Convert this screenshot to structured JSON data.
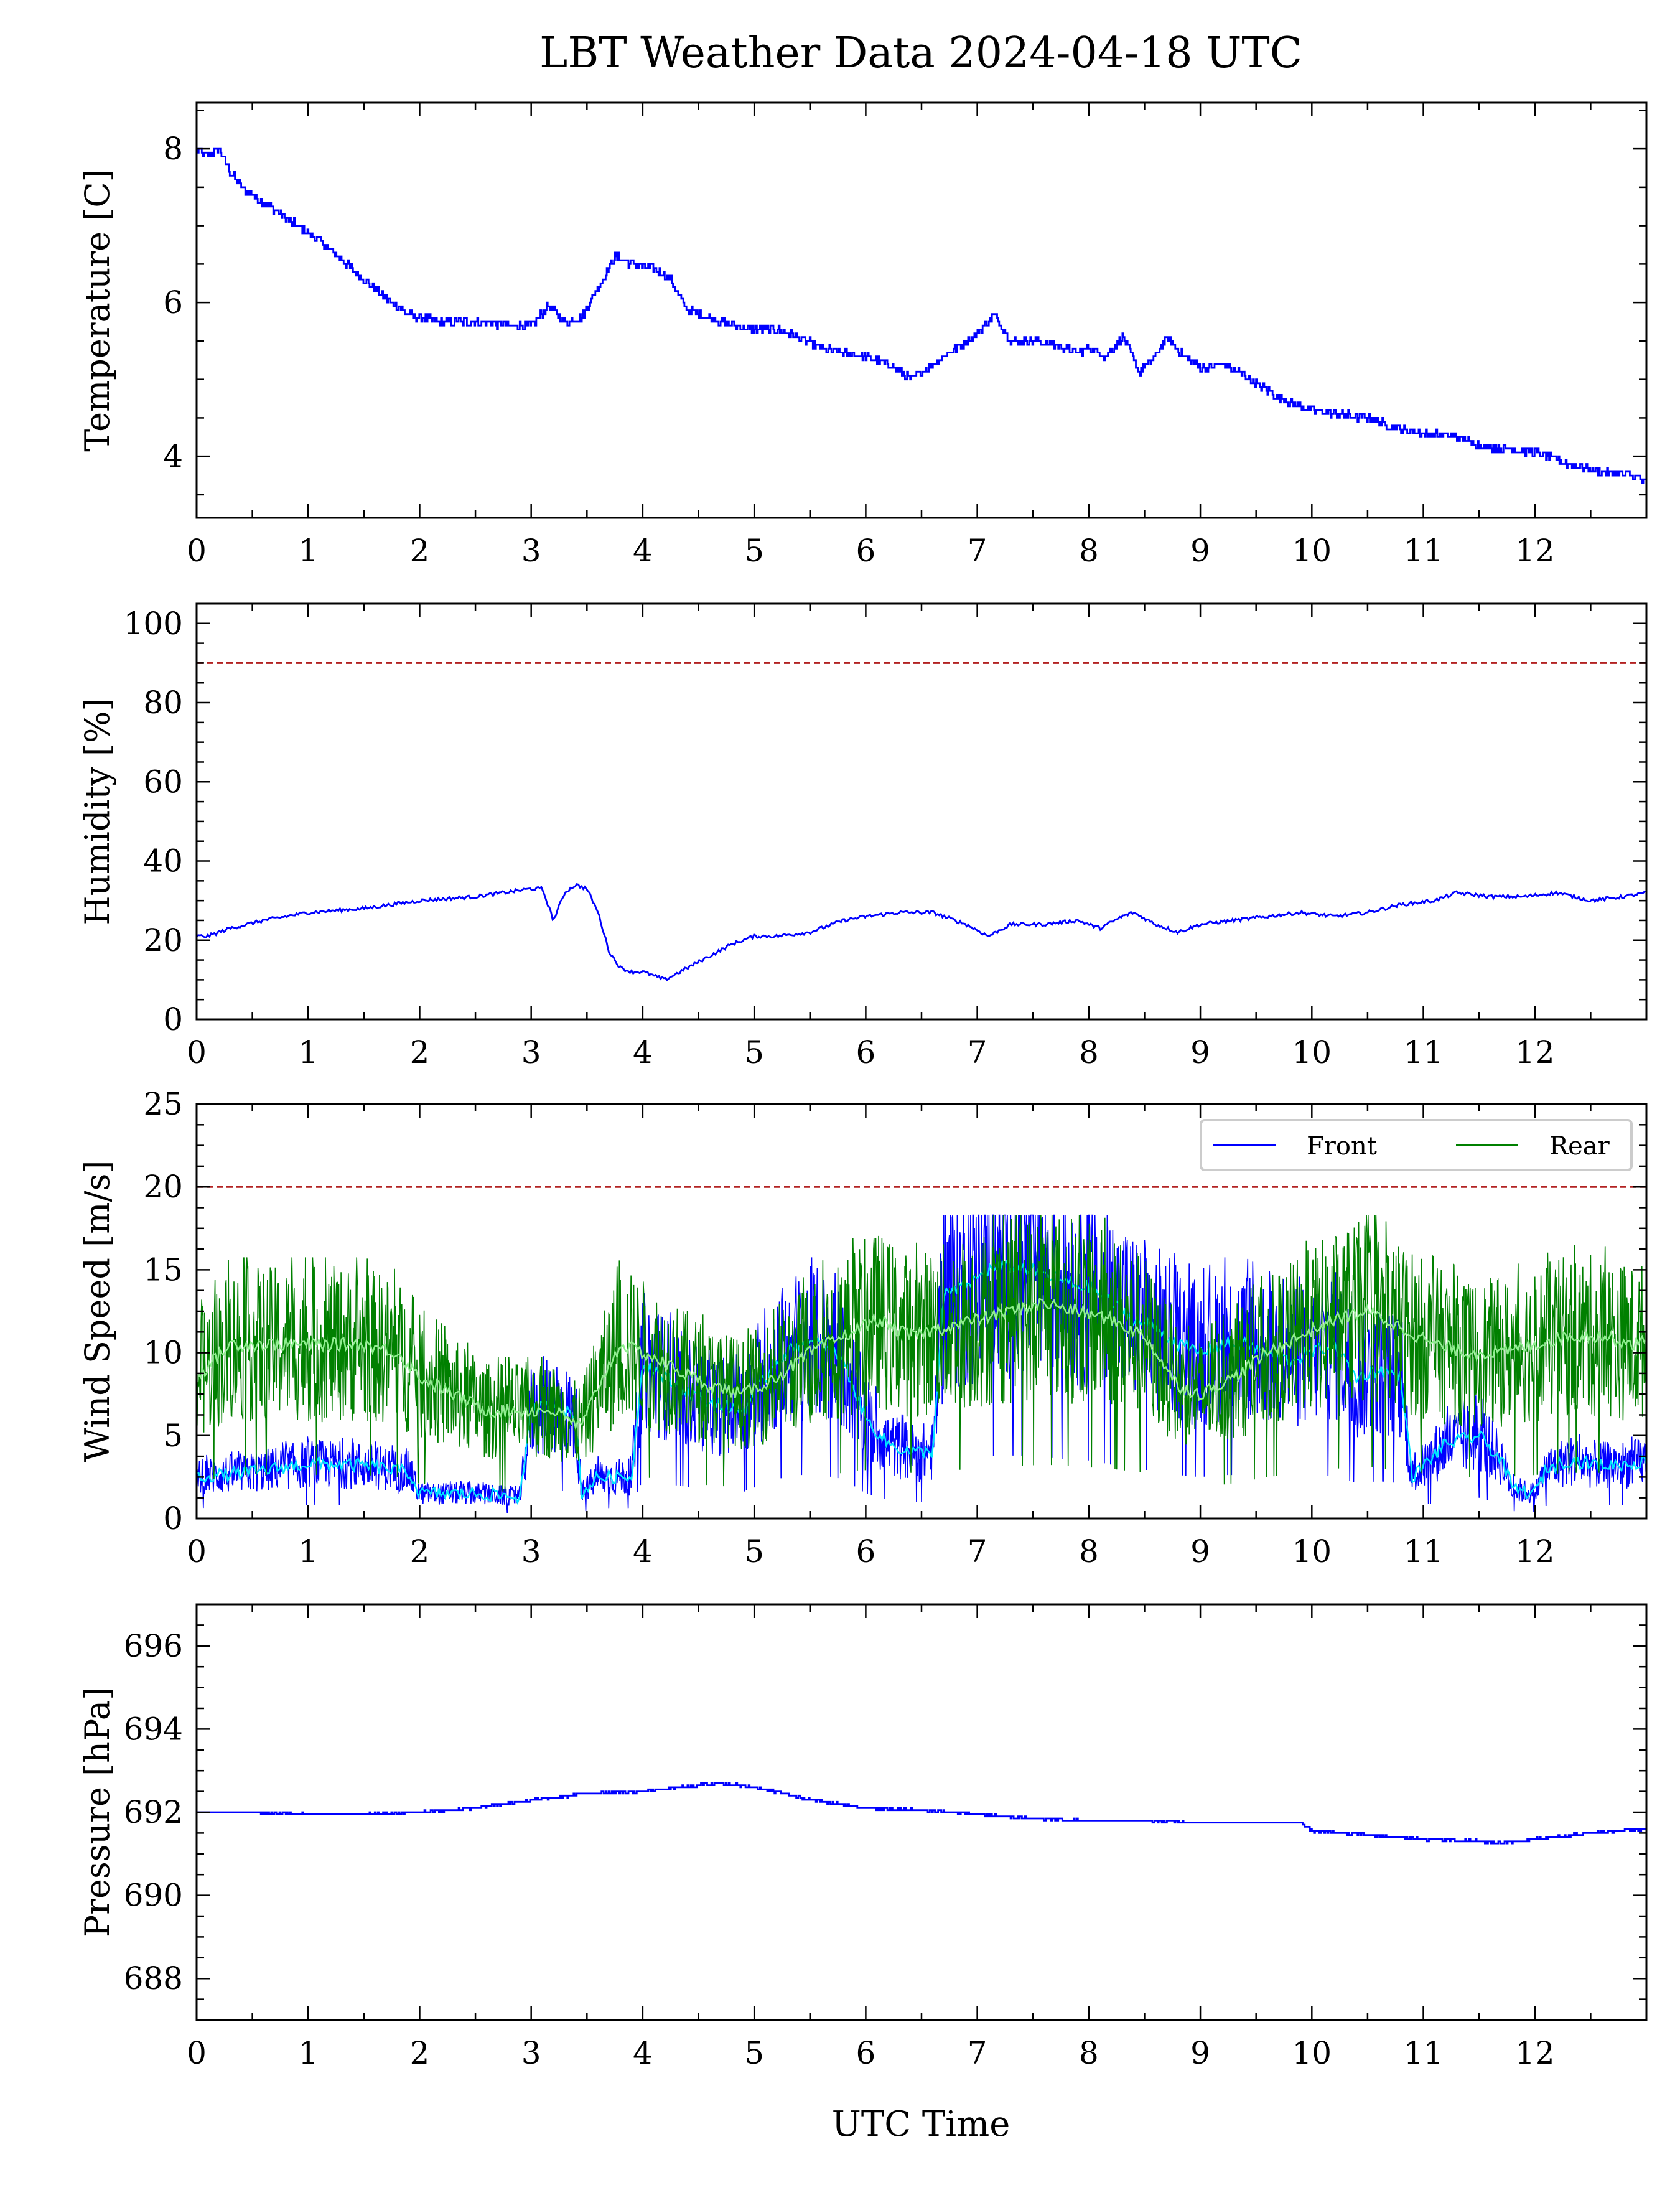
{
  "title": "LBT Weather Data 2024-04-18 UTC",
  "xlabel": "UTC Time",
  "colors": {
    "front": "#0000ff",
    "front_smooth": "#00e5ff",
    "rear": "#008000",
    "rear_smooth": "#90ee90",
    "limit": "#b22222",
    "frame": "#000000"
  },
  "chart_data": [
    {
      "type": "line",
      "ylabel": "Temperature [C]",
      "xlim": [
        0,
        13
      ],
      "ylim": [
        3.2,
        8.6
      ],
      "xticks": [
        0,
        1,
        2,
        3,
        4,
        5,
        6,
        7,
        8,
        9,
        10,
        11,
        12
      ],
      "yticks": [
        4,
        6,
        8
      ],
      "series": [
        {
          "x": [
            0,
            0.1,
            0.2,
            0.3,
            0.4,
            0.5,
            0.7,
            0.9,
            1.1,
            1.3,
            1.5,
            1.7,
            1.9,
            2.0,
            2.2,
            2.5,
            2.8,
            3.0,
            3.15,
            3.3,
            3.45,
            3.6,
            3.75,
            3.9,
            4.1,
            4.25,
            4.4,
            4.6,
            4.8,
            5.0,
            5.2,
            5.4,
            5.6,
            5.8,
            6.0,
            6.2,
            6.4,
            6.6,
            6.8,
            7.0,
            7.15,
            7.3,
            7.5,
            7.7,
            7.9,
            8.0,
            8.15,
            8.3,
            8.45,
            8.6,
            8.7,
            8.85,
            9.0,
            9.2,
            9.4,
            9.6,
            9.8,
            10.0,
            10.2,
            10.5,
            10.8,
            11.0,
            11.3,
            11.5,
            11.7,
            12.0,
            12.3,
            12.6,
            12.9,
            13.0
          ],
          "y": [
            8.0,
            7.9,
            8.0,
            7.7,
            7.5,
            7.4,
            7.2,
            7.0,
            6.8,
            6.55,
            6.3,
            6.05,
            5.85,
            5.8,
            5.75,
            5.75,
            5.7,
            5.7,
            5.95,
            5.75,
            5.8,
            6.2,
            6.6,
            6.5,
            6.45,
            6.3,
            5.9,
            5.8,
            5.7,
            5.65,
            5.65,
            5.55,
            5.4,
            5.35,
            5.3,
            5.2,
            5.0,
            5.2,
            5.4,
            5.6,
            5.85,
            5.5,
            5.5,
            5.45,
            5.35,
            5.4,
            5.3,
            5.55,
            5.1,
            5.3,
            5.55,
            5.3,
            5.15,
            5.2,
            5.05,
            4.85,
            4.7,
            4.6,
            4.55,
            4.5,
            4.35,
            4.3,
            4.25,
            4.15,
            4.1,
            4.05,
            3.9,
            3.8,
            3.75,
            3.65
          ]
        }
      ]
    },
    {
      "type": "line",
      "ylabel": "Humidity [%]",
      "xlim": [
        0,
        13
      ],
      "ylim": [
        0,
        105
      ],
      "xticks": [
        0,
        1,
        2,
        3,
        4,
        5,
        6,
        7,
        8,
        9,
        10,
        11,
        12
      ],
      "yticks": [
        0,
        20,
        40,
        60,
        80,
        100
      ],
      "limit": 90,
      "series": [
        {
          "x": [
            0,
            0.1,
            0.3,
            0.6,
            1.0,
            1.5,
            2.0,
            2.5,
            3.0,
            3.1,
            3.2,
            3.3,
            3.4,
            3.5,
            3.6,
            3.7,
            3.8,
            3.9,
            4.0,
            4.2,
            4.4,
            4.6,
            4.8,
            5.0,
            5.2,
            5.5,
            5.8,
            6.0,
            6.3,
            6.6,
            6.9,
            7.1,
            7.3,
            7.6,
            7.9,
            8.1,
            8.3,
            8.4,
            8.6,
            8.8,
            9.0,
            9.3,
            9.6,
            9.9,
            10.2,
            10.5,
            10.8,
            11.1,
            11.3,
            11.6,
            11.9,
            12.2,
            12.5,
            12.8,
            13.0
          ],
          "y": [
            21,
            21,
            23,
            25,
            27,
            28,
            30,
            31,
            33,
            33,
            25,
            32,
            34,
            33,
            27,
            17,
            13,
            12,
            12,
            10,
            13,
            16,
            19,
            21,
            21,
            22,
            25,
            26,
            27,
            27,
            24,
            21,
            24,
            24,
            25,
            23,
            26,
            27,
            24,
            22,
            24,
            25,
            26,
            27,
            26,
            27,
            29,
            30,
            32,
            31,
            31,
            32,
            30,
            31,
            32
          ]
        }
      ]
    },
    {
      "type": "line",
      "ylabel": "Wind Speed [m/s]",
      "xlim": [
        0,
        13
      ],
      "ylim": [
        0,
        25
      ],
      "xticks": [
        0,
        1,
        2,
        3,
        4,
        5,
        6,
        7,
        8,
        9,
        10,
        11,
        12
      ],
      "yticks": [
        0,
        5,
        10,
        15,
        20,
        25
      ],
      "limit": 20,
      "legend": {
        "placement": "upper right"
      },
      "series": [
        {
          "name": "Front",
          "x": [
            0,
            0.5,
            1.0,
            1.5,
            1.9,
            2.0,
            2.5,
            2.9,
            3.0,
            3.2,
            3.4,
            3.45,
            3.6,
            3.9,
            4.0,
            4.3,
            4.6,
            4.9,
            5.0,
            5.2,
            5.4,
            5.6,
            5.8,
            6.0,
            6.2,
            6.4,
            6.6,
            6.7,
            6.9,
            7.1,
            7.3,
            7.5,
            7.7,
            7.9,
            8.0,
            8.2,
            8.4,
            8.6,
            8.8,
            9.0,
            9.2,
            9.4,
            9.6,
            9.8,
            10.0,
            10.2,
            10.4,
            10.6,
            10.8,
            10.9,
            11.2,
            11.5,
            11.7,
            11.8,
            12.0,
            12.1,
            12.3,
            12.6,
            12.9,
            13.0
          ],
          "y": [
            2.5,
            2.8,
            3.3,
            3.2,
            2.8,
            1.5,
            1.5,
            1.3,
            6.5,
            7.0,
            6.0,
            1.5,
            2.5,
            2.5,
            9.5,
            8.0,
            7.0,
            6.5,
            7.5,
            9.5,
            10.5,
            10.5,
            9.5,
            6.0,
            4.5,
            4.0,
            4.0,
            13.5,
            14.0,
            15.0,
            15.2,
            15.0,
            14.5,
            14.0,
            14.0,
            13.0,
            12.0,
            11.5,
            10.5,
            10.0,
            10.5,
            10.5,
            10.0,
            9.5,
            10.0,
            10.5,
            8.5,
            9.0,
            8.5,
            2.5,
            4.5,
            5.0,
            3.5,
            1.8,
            1.5,
            3.0,
            3.5,
            3.2,
            3.3,
            3.5
          ]
        },
        {
          "name": "Rear",
          "x": [
            0,
            0.3,
            0.6,
            1.0,
            1.5,
            1.8,
            2.0,
            2.3,
            2.6,
            2.9,
            3.2,
            3.45,
            3.6,
            3.8,
            4.0,
            4.3,
            4.6,
            4.9,
            5.2,
            5.5,
            5.8,
            6.1,
            6.4,
            6.7,
            7.0,
            7.3,
            7.6,
            7.9,
            8.2,
            8.5,
            8.8,
            9.0,
            9.3,
            9.6,
            9.9,
            10.2,
            10.5,
            10.8,
            11.1,
            11.4,
            11.7,
            12.0,
            12.3,
            12.6,
            12.9,
            13.0
          ],
          "y": [
            8.5,
            10.5,
            10.5,
            10.5,
            10.5,
            10.0,
            8.5,
            7.5,
            6.5,
            6.5,
            6.5,
            5.5,
            8.0,
            10.5,
            10.0,
            9.0,
            8.0,
            7.5,
            8.5,
            10.0,
            11.0,
            12.0,
            11.0,
            11.5,
            12.0,
            12.5,
            13.0,
            12.5,
            12.0,
            11.0,
            8.0,
            7.5,
            8.5,
            10.0,
            11.0,
            12.0,
            12.5,
            11.5,
            10.5,
            10.0,
            10.0,
            10.5,
            11.0,
            11.0,
            10.5,
            10.8
          ]
        }
      ]
    },
    {
      "type": "line",
      "ylabel": "Pressure [hPa]",
      "xlim": [
        0,
        13
      ],
      "ylim": [
        687.0,
        697.0
      ],
      "xticks": [
        0,
        1,
        2,
        3,
        4,
        5,
        6,
        7,
        8,
        9,
        10,
        11,
        12
      ],
      "yticks": [
        688,
        690,
        692,
        694,
        696
      ],
      "series": [
        {
          "x": [
            0,
            0.5,
            1.0,
            1.5,
            2.0,
            2.5,
            3.0,
            3.5,
            4.0,
            4.5,
            4.7,
            5.0,
            5.5,
            6.0,
            6.5,
            7.0,
            7.5,
            8.0,
            8.5,
            9.0,
            9.5,
            9.9,
            10.0,
            10.5,
            11.0,
            11.5,
            11.7,
            12.0,
            12.5,
            13.0
          ],
          "y": [
            692.0,
            692.0,
            691.95,
            691.95,
            692.0,
            692.1,
            692.3,
            692.45,
            692.5,
            692.65,
            692.7,
            692.6,
            692.3,
            692.1,
            692.05,
            691.95,
            691.85,
            691.8,
            691.8,
            691.75,
            691.75,
            691.75,
            691.55,
            691.45,
            691.35,
            691.3,
            691.25,
            691.35,
            691.5,
            691.6
          ]
        }
      ]
    }
  ]
}
